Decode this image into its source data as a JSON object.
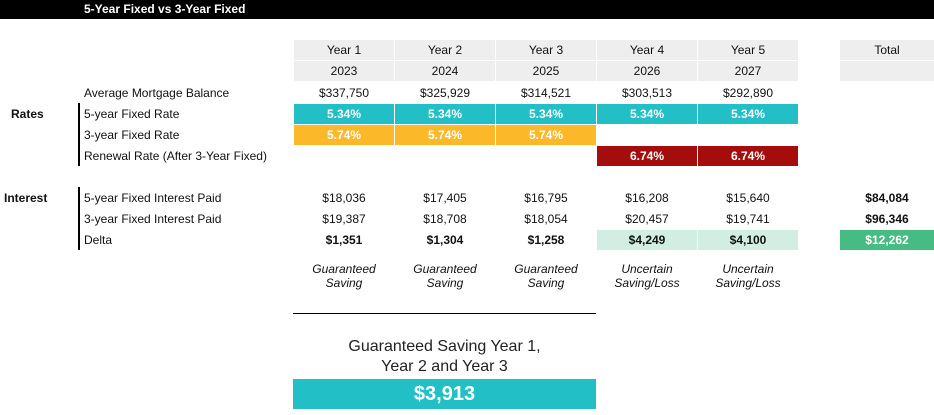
{
  "title": "5-Year Fixed vs 3-Year Fixed",
  "years": [
    {
      "label": "Year 1",
      "year": "2023"
    },
    {
      "label": "Year 2",
      "year": "2024"
    },
    {
      "label": "Year 3",
      "year": "2025"
    },
    {
      "label": "Year 4",
      "year": "2026"
    },
    {
      "label": "Year 5",
      "year": "2027"
    }
  ],
  "total_label": "Total",
  "balance": {
    "label": "Average Mortgage Balance",
    "values": [
      "$337,750",
      "$325,929",
      "$314,521",
      "$303,513",
      "$292,890"
    ]
  },
  "rates": {
    "section": "Rates",
    "five_year": {
      "label": "5-year Fixed Rate",
      "values": [
        "5.34%",
        "5.34%",
        "5.34%",
        "5.34%",
        "5.34%"
      ]
    },
    "three_year": {
      "label": "3-year Fixed Rate",
      "values": [
        "5.74%",
        "5.74%",
        "5.74%"
      ]
    },
    "renewal": {
      "label": "Renewal Rate (After 3-Year Fixed)",
      "values": [
        "6.74%",
        "6.74%"
      ]
    }
  },
  "interest": {
    "section": "Interest",
    "five_year": {
      "label": "5-year Fixed Interest Paid",
      "values": [
        "$18,036",
        "$17,405",
        "$16,795",
        "$16,208",
        "$15,640"
      ],
      "total": "$84,084"
    },
    "three_year": {
      "label": "3-year Fixed Interest Paid",
      "values": [
        "$19,387",
        "$18,708",
        "$18,054",
        "$20,457",
        "$19,741"
      ],
      "total": "$96,346"
    },
    "delta": {
      "label": "Delta",
      "values": [
        "$1,351",
        "$1,304",
        "$1,258",
        "$4,249",
        "$4,100"
      ],
      "total": "$12,262"
    }
  },
  "notes": [
    {
      "line1": "Guaranteed",
      "line2": "Saving"
    },
    {
      "line1": "Guaranteed",
      "line2": "Saving"
    },
    {
      "line1": "Guaranteed",
      "line2": "Saving"
    },
    {
      "line1": "Uncertain",
      "line2": "Saving/Loss"
    },
    {
      "line1": "Uncertain",
      "line2": "Saving/Loss"
    }
  ],
  "summary": {
    "line1": "Guaranteed Saving Year 1,",
    "line2": "Year 2 and Year 3",
    "value": "$3,913"
  },
  "colors": {
    "teal": "#23bfc6",
    "amber": "#fbb829",
    "red": "#a50d0d",
    "mint": "#d2eee2",
    "green": "#47bc82"
  }
}
